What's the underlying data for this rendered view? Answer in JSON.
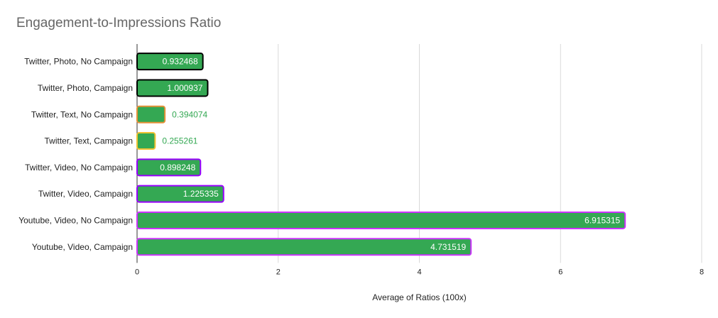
{
  "chart_data": {
    "type": "bar",
    "orientation": "horizontal",
    "title": "Engagement-to-Impressions Ratio",
    "xlabel": "Average of Ratios (100x)",
    "ylabel": "",
    "xlim": [
      0,
      8
    ],
    "x_ticks": [
      "0",
      "2",
      "4",
      "6",
      "8"
    ],
    "grid": "vertical",
    "legend": "none",
    "bar_color": "#34a853",
    "categories": [
      "Twitter, Photo, No Campaign",
      "Twitter, Photo, Campaign",
      "Twitter, Text, No Campaign",
      "Twitter, Text, Campaign",
      "Twitter, Video, No Campaign",
      "Twitter, Video, Campaign",
      "Youtube, Video, No Campaign",
      "Youtube, Video, Campaign"
    ],
    "values": [
      0.932468,
      1.000937,
      0.394074,
      0.255261,
      0.898248,
      1.225335,
      6.915315,
      4.731519
    ],
    "data_labels": [
      "0.932468",
      "1.000937",
      "0.394074",
      "0.255261",
      "0.898248",
      "1.225335",
      "6.915315",
      "4.731519"
    ],
    "bar_outline_colors": [
      "#000000",
      "#000000",
      "#e69138",
      "#f1c232",
      "#9900ff",
      "#9900ff",
      "#cc33ff",
      "#cc33ff"
    ]
  }
}
